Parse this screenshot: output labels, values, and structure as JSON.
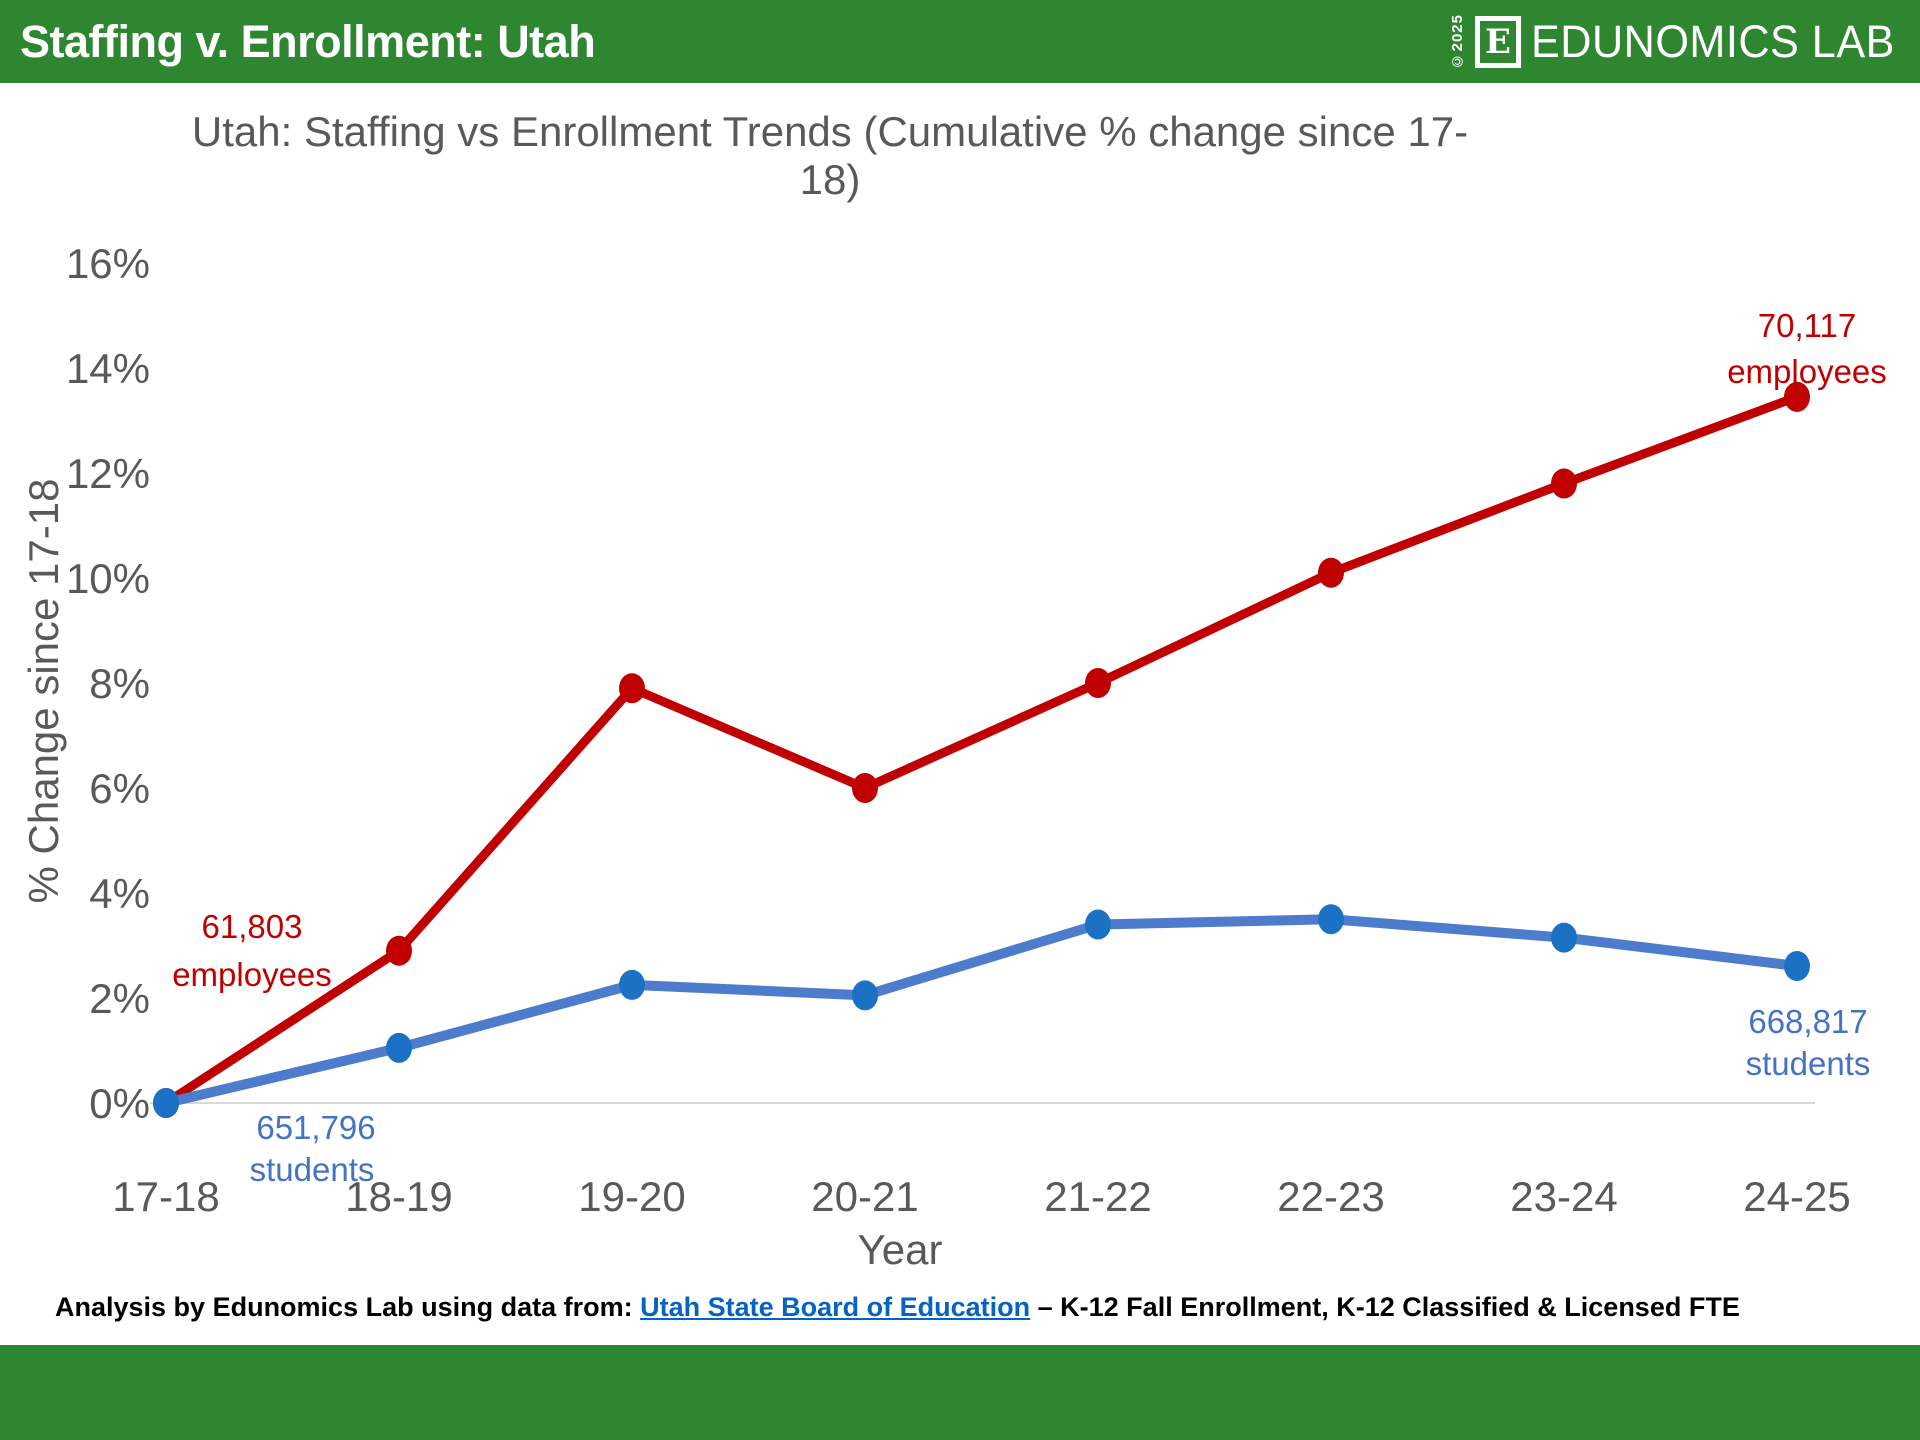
{
  "header": {
    "title_prefix": "Staffing v. Enrollment: ",
    "title_state": "Utah",
    "copyright": "©2025",
    "logo_letter": "E",
    "brand": "EDUNOMICS LAB",
    "bar_color": "#2e8630"
  },
  "footer": {
    "prefix": "Analysis by Edunomics Lab using data from: ",
    "link": "Utah State Board of Education",
    "suffix": " – K-12 Fall Enrollment, K-12 Classified & Licensed FTE"
  },
  "chart_data": {
    "type": "line",
    "title": "Utah: Staffing vs Enrollment Trends (Cumulative % change since 17-18)",
    "xlabel": "Year",
    "ylabel": "% Change since 17-18",
    "categories": [
      "17-18",
      "18-19",
      "19-20",
      "20-21",
      "21-22",
      "22-23",
      "23-24",
      "24-25"
    ],
    "ylim": [
      0,
      16
    ],
    "ytick_step": 2,
    "ytick_labels": [
      "0%",
      "2%",
      "4%",
      "6%",
      "8%",
      "10%",
      "12%",
      "14%",
      "16%"
    ],
    "grid": false,
    "legend": "none",
    "axis_line_color": "#d9d9d9",
    "tick_color": "#595959",
    "series": [
      {
        "name": "employees",
        "color": "#c00000",
        "marker_color": "#c00000",
        "values": [
          0,
          2.9,
          7.9,
          6.0,
          8.0,
          10.1,
          11.8,
          13.45
        ],
        "start_label": [
          "61,803",
          "employees"
        ],
        "end_label": [
          "70,117",
          "employees"
        ]
      },
      {
        "name": "students",
        "color": "#4d7ccc",
        "marker_color": "#1b72c4",
        "values": [
          0,
          1.05,
          2.25,
          2.05,
          3.4,
          3.5,
          3.15,
          2.61
        ],
        "start_label": [
          "651,796",
          "students"
        ],
        "end_label": [
          "668,817",
          "students"
        ]
      }
    ]
  }
}
